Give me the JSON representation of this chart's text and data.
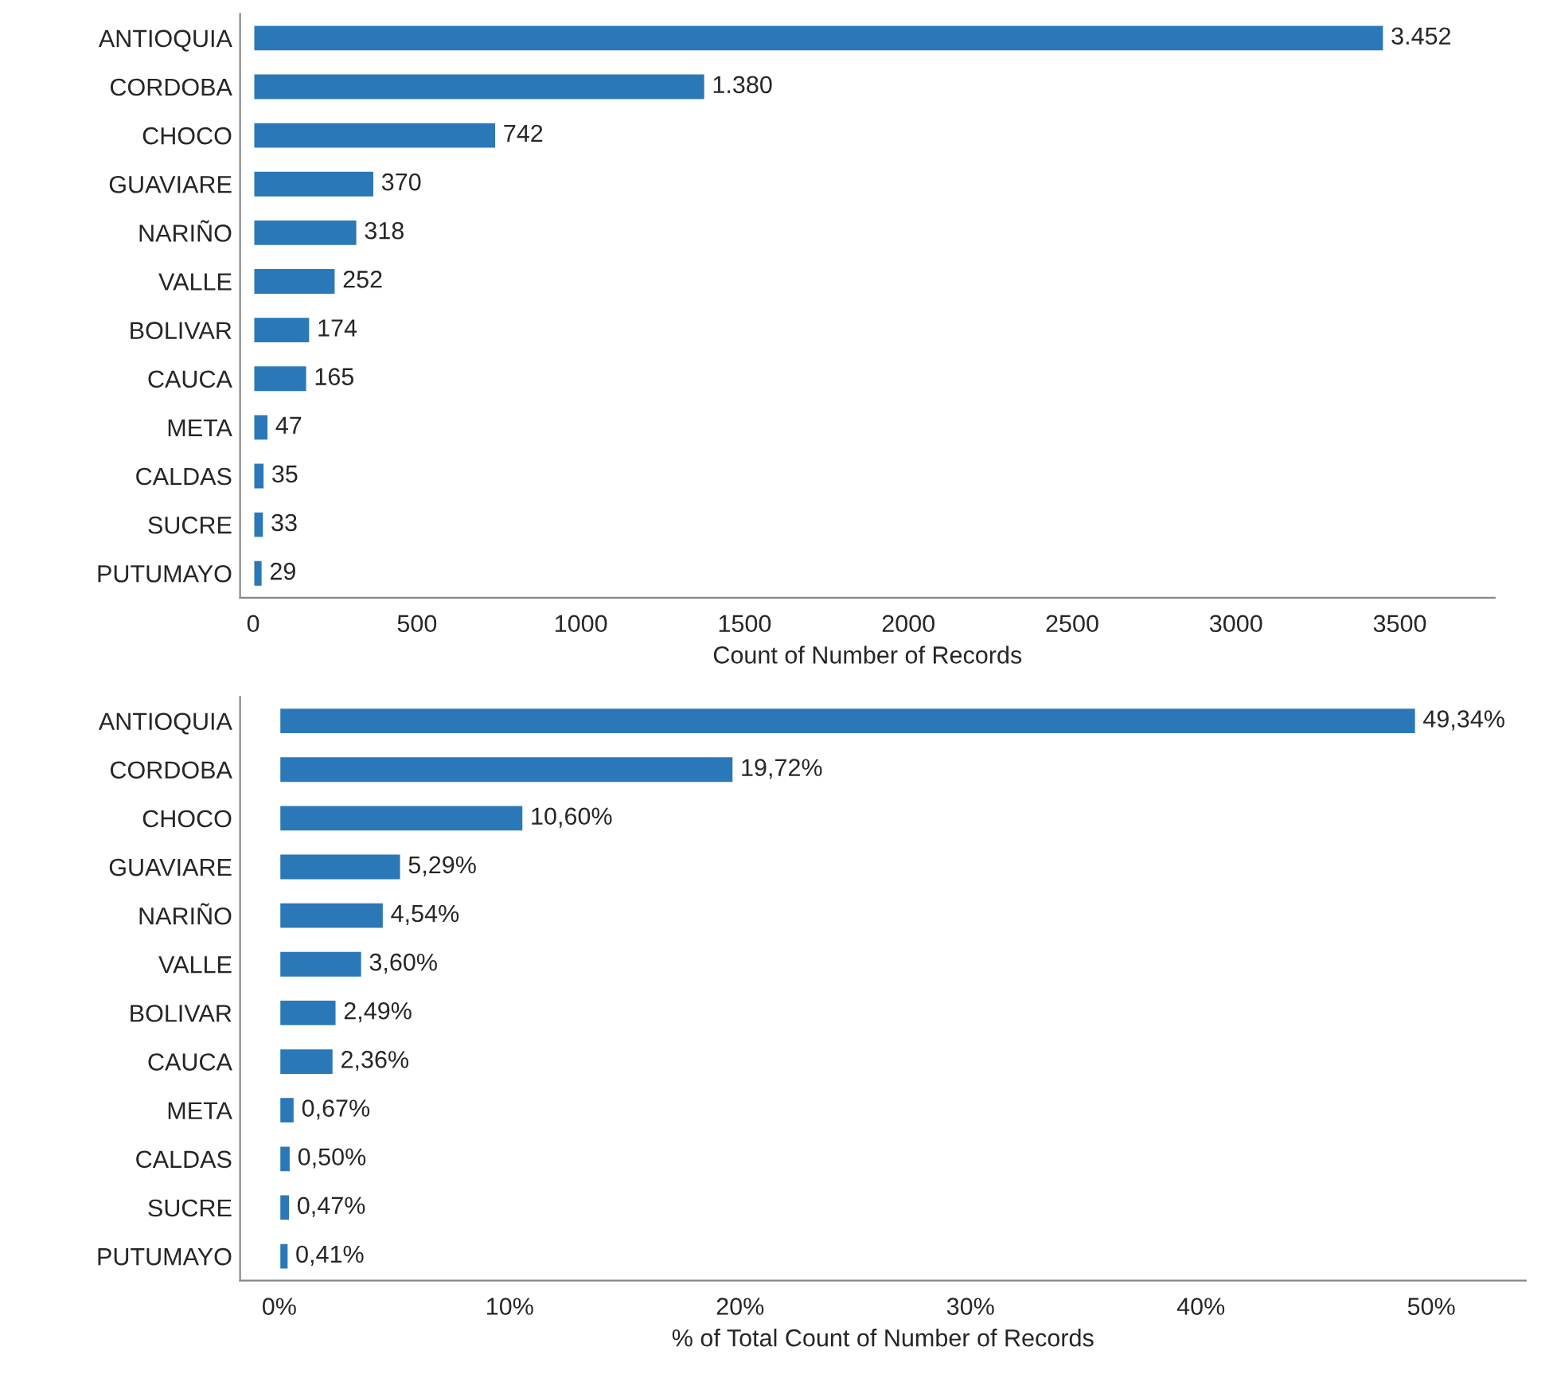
{
  "chart_data": [
    {
      "type": "bar",
      "orientation": "horizontal",
      "xlabel": "Count of Number of Records",
      "categories": [
        "ANTIOQUIA",
        "CORDOBA",
        "CHOCO",
        "GUAVIARE",
        "NARIÑO",
        "VALLE",
        "BOLIVAR",
        "CAUCA",
        "META",
        "CALDAS",
        "SUCRE",
        "PUTUMAYO"
      ],
      "color": "#2a78b8",
      "values": [
        3452,
        1380,
        742,
        370,
        318,
        252,
        174,
        165,
        47,
        35,
        33,
        29
      ],
      "value_labels": [
        "3.452",
        "1.380",
        "742",
        "370",
        "318",
        "252",
        "174",
        "165",
        "47",
        "35",
        "33",
        "29"
      ],
      "xlim": [
        -40,
        3790
      ],
      "xticks": [
        0,
        500,
        1000,
        1500,
        2000,
        2500,
        3000,
        3500
      ],
      "grid": false,
      "legend": false
    },
    {
      "type": "bar",
      "orientation": "horizontal",
      "xlabel": "% of Total Count of Number of Records",
      "categories": [
        "ANTIOQUIA",
        "CORDOBA",
        "CHOCO",
        "GUAVIARE",
        "NARIÑO",
        "VALLE",
        "BOLIVAR",
        "CAUCA",
        "META",
        "CALDAS",
        "SUCRE",
        "PUTUMAYO"
      ],
      "color": "#2a78b8",
      "values": [
        49.34,
        19.72,
        10.6,
        5.29,
        4.54,
        3.6,
        2.49,
        2.36,
        0.67,
        0.5,
        0.47,
        0.41
      ],
      "value_labels": [
        "49,34%",
        "19,72%",
        "10,60%",
        "5,29%",
        "4,54%",
        "3,60%",
        "2,49%",
        "2,36%",
        "0,67%",
        "0,50%",
        "0,47%",
        "0,41%"
      ],
      "xlim": [
        -1.7,
        54.1
      ],
      "xticks": [
        {
          "value": 0,
          "label": "0%"
        },
        {
          "value": 10,
          "label": "10%"
        },
        {
          "value": 20,
          "label": "20%"
        },
        {
          "value": 30,
          "label": "30%"
        },
        {
          "value": 40,
          "label": "40%"
        },
        {
          "value": 50,
          "label": "50%"
        }
      ],
      "grid": false,
      "legend": false
    }
  ]
}
